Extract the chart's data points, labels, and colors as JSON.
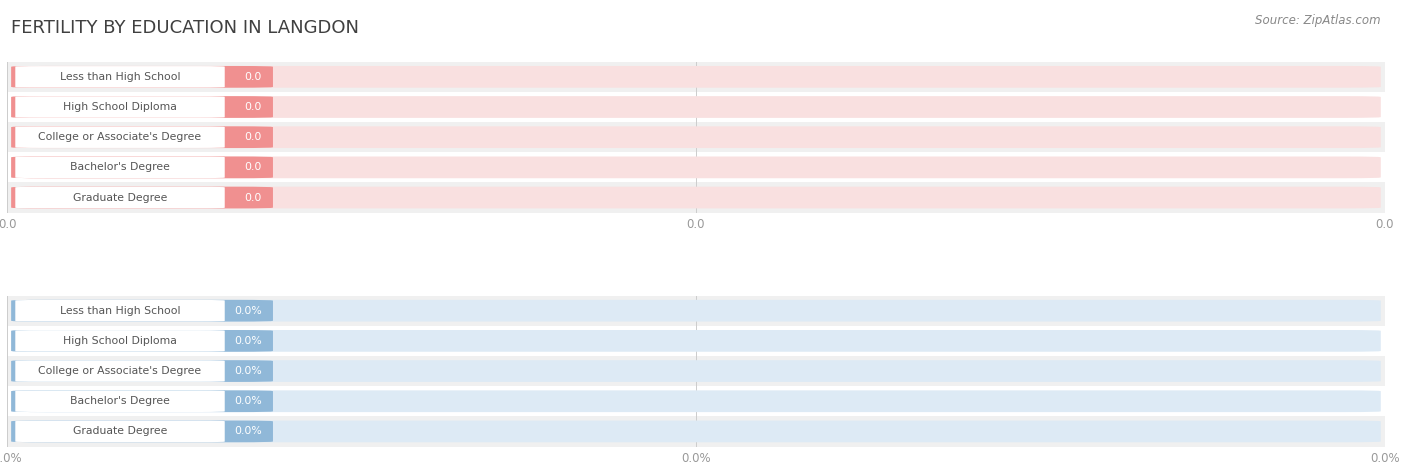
{
  "title": "FERTILITY BY EDUCATION IN LANGDON",
  "source_text": "Source: ZipAtlas.com",
  "categories": [
    "Less than High School",
    "High School Diploma",
    "College or Associate's Degree",
    "Bachelor's Degree",
    "Graduate Degree"
  ],
  "top_values": [
    0.0,
    0.0,
    0.0,
    0.0,
    0.0
  ],
  "bottom_values": [
    0.0,
    0.0,
    0.0,
    0.0,
    0.0
  ],
  "top_bar_color": "#f09090",
  "top_bg_color": "#f9e0e0",
  "bottom_bar_color": "#90b8d8",
  "bottom_bg_color": "#ddeaf5",
  "row_bg_colors": [
    "#f0f0f0",
    "#ffffff"
  ],
  "grid_color": "#cccccc",
  "title_color": "#404040",
  "label_text_color": "#555555",
  "axis_label_color": "#999999",
  "background_color": "#ffffff",
  "tick_labels_top": [
    "0.0",
    "0.0",
    "0.0"
  ],
  "tick_labels_bottom": [
    "0.0%",
    "0.0%",
    "0.0%"
  ]
}
